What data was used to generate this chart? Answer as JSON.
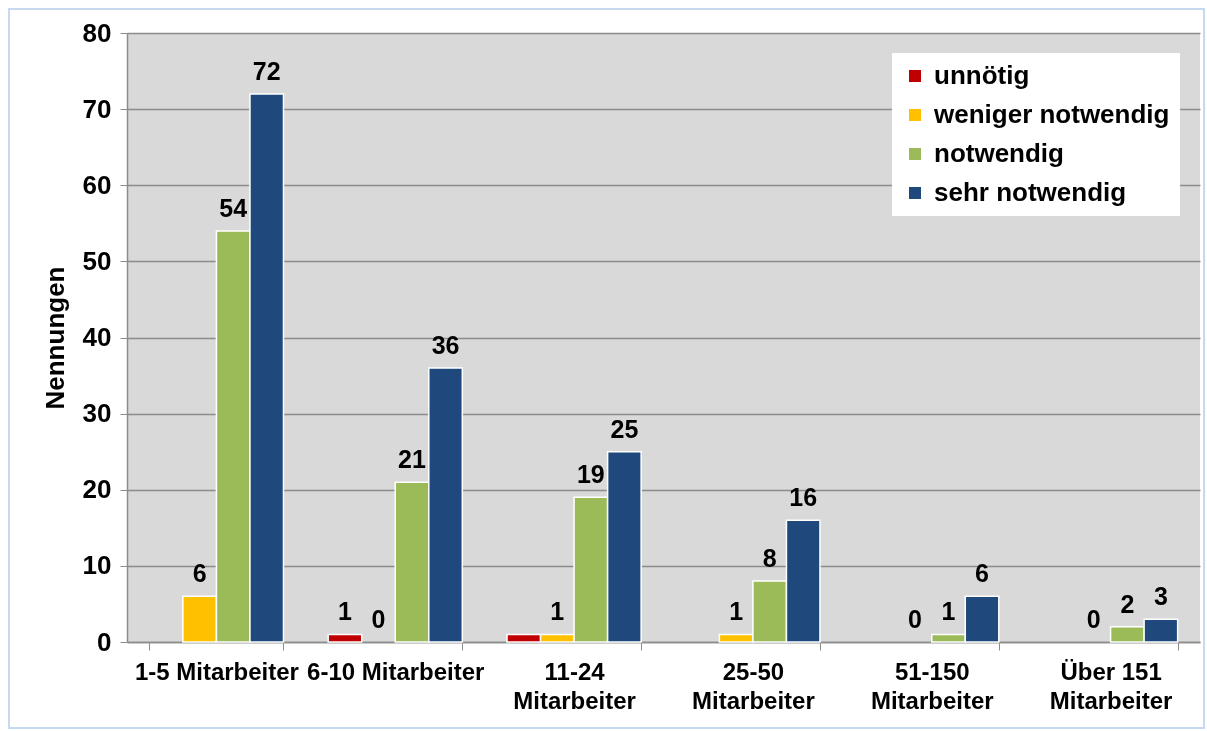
{
  "chart_data": {
    "type": "bar",
    "ylabel": "Nennungen",
    "categories": [
      "1-5 Mitarbeiter",
      "6-10 Mitarbeiter",
      "11-24 Mitarbeiter",
      "25-50 Mitarbeiter",
      "51-150 Mitarbeiter",
      "Über 151 Mitarbeiter"
    ],
    "series": [
      {
        "name": "unnötig",
        "color": "#c00000",
        "values": [
          null,
          1,
          1,
          null,
          null,
          null
        ],
        "value_labels": [
          null,
          "1",
          null,
          null,
          null,
          null
        ]
      },
      {
        "name": "weniger notwendig",
        "color": "#ffc000",
        "values": [
          6,
          0,
          1,
          1,
          0,
          0
        ],
        "value_labels": [
          "6",
          "0",
          "1",
          "1",
          "0",
          "0"
        ]
      },
      {
        "name": "notwendig",
        "color": "#9bbb59",
        "values": [
          54,
          21,
          19,
          8,
          1,
          2
        ],
        "value_labels": [
          "54",
          "21",
          "19",
          "8",
          "1",
          "2"
        ]
      },
      {
        "name": "sehr notwendig",
        "color": "#1f497d",
        "values": [
          72,
          36,
          25,
          16,
          6,
          3
        ],
        "value_labels": [
          "72",
          "36",
          "25",
          "16",
          "6",
          "3"
        ]
      }
    ],
    "ylim": [
      0,
      80
    ],
    "yticks": [
      0,
      10,
      20,
      30,
      40,
      50,
      60,
      70,
      80
    ],
    "grid": "y",
    "legend": "top right"
  }
}
